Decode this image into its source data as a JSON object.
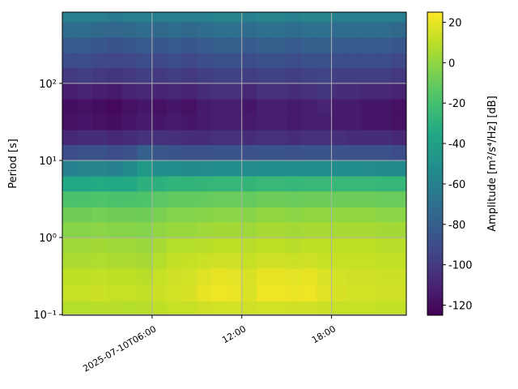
{
  "chart_data": {
    "type": "heatmap",
    "colormap": "viridis",
    "ylabel": "Period [s]",
    "colorbar_label": "Amplitude [m²/s⁴/Hz] [dB]",
    "grid": true,
    "yscale": "log",
    "xlim": [
      0,
      23
    ],
    "xticks": [
      {
        "value": 6,
        "label": "2025-07-10T06:00"
      },
      {
        "value": 12,
        "label": "12:00"
      },
      {
        "value": 18,
        "label": "18:00"
      }
    ],
    "ylim": [
      0.098,
      840
    ],
    "yticks": [
      {
        "value": 0.1,
        "label": "10⁻¹"
      },
      {
        "value": 1,
        "label": "10⁰"
      },
      {
        "value": 10,
        "label": "10¹"
      },
      {
        "value": 100,
        "label": "10²"
      }
    ],
    "clim": [
      -125,
      25
    ],
    "cticks": [
      -120,
      -100,
      -80,
      -60,
      -40,
      -20,
      0,
      20
    ],
    "x": [
      0,
      1,
      2,
      3,
      4,
      5,
      6,
      7,
      8,
      9,
      10,
      11,
      12,
      13,
      14,
      15,
      16,
      17,
      18,
      19,
      20,
      21,
      22,
      23
    ],
    "y": [
      0.098,
      0.15,
      0.25,
      0.4,
      0.63,
      1,
      1.6,
      2.5,
      4,
      6.3,
      10,
      16,
      25,
      40,
      63,
      100,
      160,
      250,
      400,
      630,
      840
    ],
    "z": [
      [
        8,
        8,
        9,
        9,
        8,
        9,
        10,
        12,
        12,
        14,
        15,
        15,
        14,
        15,
        15,
        14,
        14,
        13,
        12,
        12,
        12,
        11,
        11
      ],
      [
        12,
        12,
        13,
        12,
        12,
        11,
        13,
        15,
        16,
        20,
        22,
        21,
        17,
        22,
        22,
        21,
        22,
        18,
        16,
        15,
        15,
        14,
        14
      ],
      [
        10,
        10,
        11,
        10,
        10,
        9,
        12,
        14,
        15,
        18,
        20,
        19,
        16,
        20,
        20,
        19,
        20,
        17,
        15,
        14,
        14,
        13,
        13
      ],
      [
        6,
        6,
        7,
        6,
        6,
        5,
        8,
        11,
        12,
        13,
        14,
        14,
        12,
        14,
        14,
        13,
        14,
        12,
        12,
        12,
        12,
        11,
        11
      ],
      [
        3,
        3,
        4,
        3,
        3,
        2,
        5,
        8,
        8,
        9,
        10,
        10,
        9,
        10,
        10,
        9,
        10,
        10,
        10,
        10,
        10,
        9,
        9
      ],
      [
        -2,
        -2,
        -1,
        -2,
        -2,
        -3,
        0,
        2,
        2,
        3,
        4,
        4,
        3,
        5,
        5,
        4,
        5,
        5,
        5,
        5,
        5,
        4,
        4
      ],
      [
        -8,
        -8,
        -7,
        -8,
        -8,
        -8,
        -5,
        -3,
        -3,
        -2,
        -1,
        -1,
        -2,
        0,
        0,
        -1,
        0,
        0,
        0,
        0,
        0,
        -1,
        -1
      ],
      [
        -18,
        -18,
        -17,
        -18,
        -18,
        -17,
        -14,
        -12,
        -12,
        -11,
        -10,
        -10,
        -11,
        -9,
        -9,
        -10,
        -9,
        -9,
        -9,
        -9,
        -9,
        -10,
        -10
      ],
      [
        -35,
        -35,
        -34,
        -35,
        -35,
        -30,
        -30,
        -28,
        -28,
        -27,
        -26,
        -26,
        -27,
        -25,
        -25,
        -26,
        -25,
        -25,
        -25,
        -25,
        -25,
        -26,
        -26
      ],
      [
        -60,
        -58,
        -58,
        -60,
        -55,
        -45,
        -52,
        -52,
        -55,
        -54,
        -52,
        -52,
        -54,
        -52,
        -52,
        -53,
        -52,
        -52,
        -53,
        -53,
        -54,
        -55,
        -55
      ],
      [
        -90,
        -88,
        -88,
        -90,
        -88,
        -80,
        -85,
        -86,
        -88,
        -88,
        -86,
        -86,
        -88,
        -86,
        -86,
        -88,
        -86,
        -86,
        -87,
        -88,
        -88,
        -88,
        -90
      ],
      [
        -108,
        -106,
        -106,
        -108,
        -106,
        -104,
        -104,
        -105,
        -106,
        -106,
        -104,
        -104,
        -106,
        -104,
        -104,
        -106,
        -104,
        -104,
        -105,
        -106,
        -106,
        -106,
        -108
      ],
      [
        -118,
        -116,
        -118,
        -120,
        -116,
        -114,
        -116,
        -114,
        -116,
        -114,
        -112,
        -112,
        -114,
        -112,
        -112,
        -114,
        -112,
        -112,
        -114,
        -114,
        -116,
        -116,
        -118
      ],
      [
        -120,
        -118,
        -120,
        -122,
        -118,
        -116,
        -118,
        -116,
        -118,
        -114,
        -112,
        -112,
        -116,
        -112,
        -112,
        -114,
        -112,
        -110,
        -114,
        -114,
        -116,
        -116,
        -118
      ],
      [
        -112,
        -110,
        -112,
        -114,
        -110,
        -108,
        -110,
        -108,
        -110,
        -106,
        -104,
        -104,
        -108,
        -104,
        -104,
        -106,
        -104,
        -102,
        -106,
        -106,
        -108,
        -108,
        -110
      ],
      [
        -100,
        -98,
        -100,
        -102,
        -100,
        -98,
        -100,
        -98,
        -100,
        -98,
        -96,
        -96,
        -98,
        -96,
        -96,
        -98,
        -96,
        -95,
        -98,
        -98,
        -98,
        -98,
        -100
      ],
      [
        -90,
        -90,
        -92,
        -94,
        -92,
        -90,
        -92,
        -90,
        -92,
        -90,
        -88,
        -88,
        -90,
        -88,
        -88,
        -90,
        -88,
        -88,
        -90,
        -90,
        -90,
        -90,
        -92
      ],
      [
        -82,
        -82,
        -84,
        -86,
        -84,
        -82,
        -84,
        -82,
        -84,
        -82,
        -80,
        -80,
        -82,
        -80,
        -80,
        -82,
        -80,
        -80,
        -82,
        -82,
        -82,
        -82,
        -84
      ],
      [
        -72,
        -72,
        -74,
        -76,
        -74,
        -72,
        -74,
        -72,
        -74,
        -72,
        -70,
        -70,
        -72,
        -70,
        -70,
        -72,
        -70,
        -70,
        -72,
        -72,
        -72,
        -72,
        -74
      ],
      [
        -60,
        -60,
        -62,
        -64,
        -62,
        -60,
        -62,
        -60,
        -62,
        -60,
        -58,
        -58,
        -60,
        -58,
        -58,
        -60,
        -58,
        -58,
        -60,
        -60,
        -60,
        -60,
        -62
      ]
    ]
  }
}
